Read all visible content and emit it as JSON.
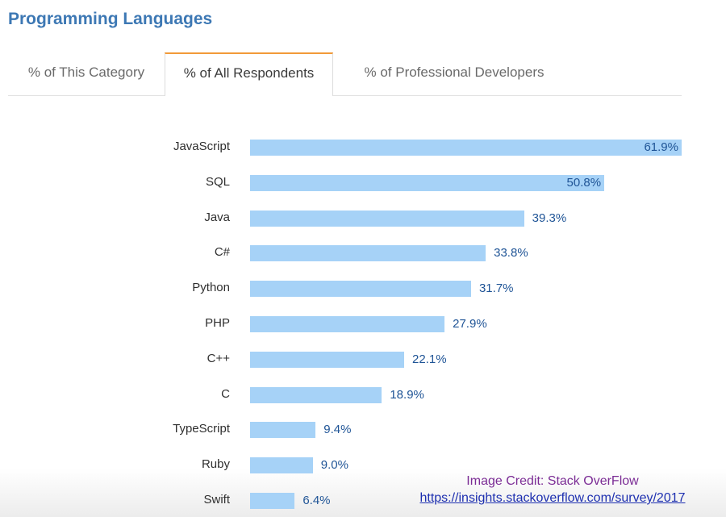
{
  "header": {
    "title": "Programming Languages"
  },
  "tabs": [
    {
      "label": "% of This Category",
      "active": false
    },
    {
      "label": "% of All Respondents",
      "active": true
    },
    {
      "label": "% of Professional Developers",
      "active": false
    }
  ],
  "colors": {
    "title": "#3d78b4",
    "bar": "#a6d2f7",
    "value_text": "#1f5496",
    "active_tab_accent": "#f29a38",
    "credit_text": "#7b2c95",
    "credit_link": "#1d2fb0"
  },
  "credit": {
    "text": "Image Credit: Stack OverFlow",
    "link": "https://insights.stackoverflow.com/survey/2017"
  },
  "chart_data": {
    "type": "bar",
    "orientation": "horizontal",
    "title": "Programming Languages",
    "subtitle": "% of All Respondents",
    "xlabel": "",
    "ylabel": "",
    "categories": [
      "JavaScript",
      "SQL",
      "Java",
      "C#",
      "Python",
      "PHP",
      "C++",
      "C",
      "TypeScript",
      "Ruby",
      "Swift"
    ],
    "values": [
      61.9,
      50.8,
      39.3,
      33.8,
      31.7,
      27.9,
      22.1,
      18.9,
      9.4,
      9.0,
      6.4
    ],
    "value_labels": [
      "61.9%",
      "50.8%",
      "39.3%",
      "33.8%",
      "31.7%",
      "27.9%",
      "22.1%",
      "18.9%",
      "9.4%",
      "9.0%",
      "6.4%"
    ],
    "xlim": [
      0,
      61.9
    ],
    "grid": false,
    "legend": null
  }
}
